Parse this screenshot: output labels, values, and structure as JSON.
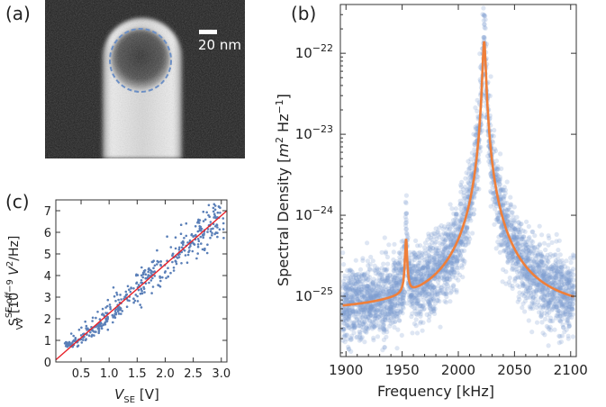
{
  "panel_labels": {
    "a": "(a)",
    "b": "(b)",
    "c": "(c)"
  },
  "panel_a": {
    "scale_bar_text": "20 nm"
  },
  "chart_data": [
    {
      "panel": "b",
      "type": "scatter",
      "xlabel": "Frequency [kHz]",
      "ylabel_main": "Spectral Density [",
      "ylabel_unit_m": "m",
      "ylabel_exp_2": "2",
      "ylabel_hz": " Hz",
      "ylabel_exp_m1": "−1",
      "ylabel_close": "]",
      "xlim": [
        1895,
        2105
      ],
      "ylog": true,
      "ylim": [
        1.8e-26,
        4e-22
      ],
      "x_ticks": [
        1900,
        1950,
        2000,
        2050,
        2100
      ],
      "y_ticks": [
        {
          "value": 1e-25,
          "base": "10",
          "exp": "−25"
        },
        {
          "value": 1e-24,
          "base": "10",
          "exp": "−24"
        },
        {
          "value": 1e-23,
          "base": "10",
          "exp": "−23"
        },
        {
          "value": 1e-22,
          "base": "10",
          "exp": "−22"
        }
      ],
      "series": [
        {
          "type": "scatter",
          "color": "#7b9bd0",
          "opacity": 0.25
        },
        {
          "type": "line",
          "color": "#ef7f3a",
          "fit": {
            "background": 6.2e-26,
            "peaks": [
              {
                "f0": 2023,
                "amplitude": 1.4e-22,
                "gamma": 1.3
              },
              {
                "f0": 1953.5,
                "amplitude": 4e-25,
                "gamma": 0.9
              }
            ]
          }
        }
      ]
    },
    {
      "panel": "c",
      "type": "scatter",
      "xlabel_main": "V",
      "xlabel_sub": "SE",
      "xlabel_unit": " [V]",
      "ylabel_main": "S",
      "ylabel_sup": "SE,off",
      "ylabel_sub": "VV",
      "ylabel_unit": " [10",
      "ylabel_unit_exp": "−9",
      "ylabel_unit_tail": " V",
      "ylabel_unit_exp2": "2",
      "ylabel_unit_end": "/Hz]",
      "xlim": [
        0.05,
        3.1
      ],
      "ylim": [
        0,
        7.5
      ],
      "x_ticks": [
        "0.5",
        "1.0",
        "1.5",
        "2.0",
        "2.5",
        "3.0"
      ],
      "y_ticks": [
        "0",
        "1",
        "2",
        "3",
        "4",
        "5",
        "6",
        "7"
      ],
      "series": [
        {
          "type": "scatter",
          "color": "#5a7fb8"
        },
        {
          "type": "line",
          "color": "#e8222a",
          "x": [
            0.05,
            3.1
          ],
          "y": [
            0.1,
            7.0
          ]
        }
      ]
    }
  ]
}
